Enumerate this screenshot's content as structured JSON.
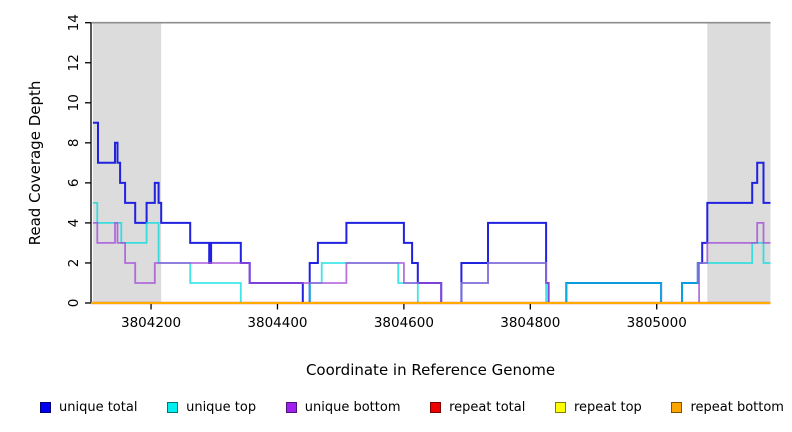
{
  "axes": {
    "x_title": "Coordinate in Reference Genome",
    "y_title": "Read Coverage Depth"
  },
  "chart_data": {
    "type": "line",
    "step": true,
    "title": "",
    "xlabel": "Coordinate in Reference Genome",
    "ylabel": "Read Coverage Depth",
    "xlim": [
      3804105,
      3805180
    ],
    "ylim": [
      0,
      14
    ],
    "x_ticks": [
      3804200,
      3804400,
      3804600,
      3804800,
      3805000
    ],
    "y_ticks": [
      0,
      2,
      4,
      6,
      8,
      10,
      12,
      14
    ],
    "grid": false,
    "legend_position": "bottom",
    "max_line": {
      "y": 14,
      "color": "#8E8E8E"
    },
    "shaded_regions": [
      {
        "from": 3804108,
        "to": 3804216,
        "color": "#DCDCDC"
      },
      {
        "from": 3805080,
        "to": 3805180,
        "color": "#DCDCDC"
      }
    ],
    "series": [
      {
        "name": "unique total",
        "color": "#2121E0",
        "legend_color": "#0000EE",
        "lwd": 2,
        "opacity": 1,
        "steps": [
          [
            3804108,
            9
          ],
          [
            3804116,
            7
          ],
          [
            3804143,
            8
          ],
          [
            3804147,
            7
          ],
          [
            3804151,
            6
          ],
          [
            3804159,
            5
          ],
          [
            3804175,
            4
          ],
          [
            3804193,
            5
          ],
          [
            3804206,
            6
          ],
          [
            3804212,
            5
          ],
          [
            3804216,
            4
          ],
          [
            3804262,
            3
          ],
          [
            3804292,
            2
          ],
          [
            3804295,
            3
          ],
          [
            3804342,
            2
          ],
          [
            3804356,
            1
          ],
          [
            3804440,
            0
          ],
          [
            3804451,
            2
          ],
          [
            3804464,
            3
          ],
          [
            3804509,
            4
          ],
          [
            3804600,
            3
          ],
          [
            3804613,
            2
          ],
          [
            3804622,
            1
          ],
          [
            3804659,
            0
          ],
          [
            3804691,
            2
          ],
          [
            3804733,
            4
          ],
          [
            3804825,
            1
          ],
          [
            3804829,
            0
          ],
          [
            3804857,
            1
          ],
          [
            3805007,
            0
          ],
          [
            3805040,
            1
          ],
          [
            3805065,
            2
          ],
          [
            3805072,
            3
          ],
          [
            3805080,
            5
          ],
          [
            3805151,
            6
          ],
          [
            3805159,
            7
          ],
          [
            3805169,
            5
          ],
          [
            3805180,
            5
          ]
        ]
      },
      {
        "name": "unique top",
        "color": "#00DEDE",
        "legend_color": "#00EEEE",
        "lwd": 1.8,
        "opacity": 0.75,
        "steps": [
          [
            3804108,
            5
          ],
          [
            3804115,
            4
          ],
          [
            3804153,
            3
          ],
          [
            3804193,
            4
          ],
          [
            3804212,
            2
          ],
          [
            3804262,
            1
          ],
          [
            3804342,
            0
          ],
          [
            3804451,
            1
          ],
          [
            3804470,
            2
          ],
          [
            3804591,
            1
          ],
          [
            3804622,
            0
          ],
          [
            3804691,
            1
          ],
          [
            3804733,
            2
          ],
          [
            3804825,
            0
          ],
          [
            3804857,
            1
          ],
          [
            3805007,
            0
          ],
          [
            3805040,
            1
          ],
          [
            3805065,
            2
          ],
          [
            3805151,
            3
          ],
          [
            3805169,
            2
          ],
          [
            3805180,
            2
          ]
        ]
      },
      {
        "name": "unique bottom",
        "color": "#A44FD8",
        "legend_color": "#A020F0",
        "lwd": 1.8,
        "opacity": 0.8,
        "steps": [
          [
            3804108,
            4
          ],
          [
            3804115,
            3
          ],
          [
            3804143,
            4
          ],
          [
            3804147,
            3
          ],
          [
            3804159,
            2
          ],
          [
            3804175,
            1
          ],
          [
            3804206,
            2
          ],
          [
            3804356,
            1
          ],
          [
            3804509,
            2
          ],
          [
            3804600,
            1
          ],
          [
            3804659,
            0
          ],
          [
            3804691,
            1
          ],
          [
            3804733,
            2
          ],
          [
            3804825,
            1
          ],
          [
            3804829,
            0
          ],
          [
            3805067,
            2
          ],
          [
            3805080,
            3
          ],
          [
            3805159,
            4
          ],
          [
            3805169,
            3
          ],
          [
            3805180,
            3
          ]
        ]
      },
      {
        "name": "repeat total",
        "color": "#E00000",
        "legend_color": "#EE0000",
        "lwd": 2.2,
        "opacity": 1,
        "steps": [
          [
            3804105,
            0
          ],
          [
            3805180,
            0
          ]
        ]
      },
      {
        "name": "repeat top",
        "color": "#FFFF00",
        "legend_color": "#FFFF00",
        "lwd": 1.8,
        "opacity": 1,
        "steps": [
          [
            3804105,
            0
          ],
          [
            3805180,
            0
          ]
        ]
      },
      {
        "name": "repeat bottom",
        "color": "#FFA500",
        "legend_color": "#FFA500",
        "lwd": 1.7,
        "opacity": 0.92,
        "steps": [
          [
            3804105,
            0
          ],
          [
            3805180,
            0
          ]
        ]
      }
    ]
  }
}
